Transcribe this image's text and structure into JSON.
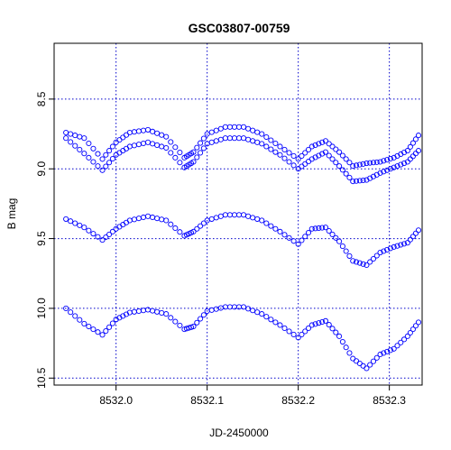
{
  "chart_data": {
    "type": "scatter",
    "title": "GSC03807-00759",
    "xlabel": "JD-2450000",
    "ylabel": "B mag",
    "xlim": [
      8531.932,
      8532.336
    ],
    "ylim": [
      10.55,
      8.1
    ],
    "y_inverted": true,
    "x_ticks": [
      8532.0,
      8532.1,
      8532.2,
      8532.3
    ],
    "x_tick_labels": [
      "8532.0",
      "8532.1",
      "8532.2",
      "8532.3"
    ],
    "y_ticks": [
      8.5,
      9.0,
      9.5,
      10.0,
      10.5
    ],
    "y_tick_labels": [
      "8.5",
      "9.0",
      "9.5",
      "10.0",
      "10.5"
    ],
    "grid": true,
    "marker": "open-circle",
    "color": "#0000ff",
    "grid_color": "#0000cc",
    "series": [
      {
        "x": [
          8531.945,
          8531.965,
          8531.985,
          8532.0,
          8532.015,
          8532.035,
          8532.055,
          8532.075,
          8532.085,
          8532.1,
          8532.12,
          8532.14,
          8532.16,
          8532.18,
          8532.2,
          8532.215,
          8532.23,
          8532.245,
          8532.26,
          8532.275,
          8532.29,
          8532.305,
          8532.32,
          8532.332
        ],
        "y": [
          8.74,
          8.78,
          8.93,
          8.81,
          8.74,
          8.72,
          8.77,
          8.92,
          8.88,
          8.75,
          8.7,
          8.7,
          8.75,
          8.84,
          8.93,
          8.84,
          8.8,
          8.88,
          8.98,
          8.96,
          8.95,
          8.92,
          8.87,
          8.76
        ]
      },
      {
        "x": [
          8531.945,
          8531.965,
          8531.985,
          8532.0,
          8532.015,
          8532.035,
          8532.055,
          8532.075,
          8532.085,
          8532.1,
          8532.12,
          8532.14,
          8532.16,
          8532.18,
          8532.2,
          8532.215,
          8532.23,
          8532.245,
          8532.26,
          8532.275,
          8532.29,
          8532.305,
          8532.32,
          8532.332
        ],
        "y": [
          8.78,
          8.89,
          9.01,
          8.9,
          8.84,
          8.81,
          8.85,
          8.99,
          8.95,
          8.82,
          8.78,
          8.78,
          8.82,
          8.9,
          9.0,
          8.93,
          8.88,
          8.98,
          9.09,
          9.08,
          9.03,
          8.99,
          8.95,
          8.87
        ]
      },
      {
        "x": [
          8531.945,
          8531.965,
          8531.985,
          8532.0,
          8532.015,
          8532.035,
          8532.055,
          8532.075,
          8532.085,
          8532.1,
          8532.12,
          8532.14,
          8532.16,
          8532.18,
          8532.2,
          8532.215,
          8532.23,
          8532.245,
          8532.26,
          8532.275,
          8532.29,
          8532.305,
          8532.32,
          8532.332
        ],
        "y": [
          9.36,
          9.42,
          9.51,
          9.43,
          9.37,
          9.34,
          9.37,
          9.48,
          9.45,
          9.37,
          9.33,
          9.33,
          9.37,
          9.45,
          9.54,
          9.43,
          9.42,
          9.52,
          9.66,
          9.69,
          9.6,
          9.56,
          9.53,
          9.44
        ]
      },
      {
        "x": [
          8531.945,
          8531.965,
          8531.985,
          8532.0,
          8532.015,
          8532.035,
          8532.055,
          8532.075,
          8532.085,
          8532.1,
          8532.12,
          8532.14,
          8532.16,
          8532.18,
          8532.2,
          8532.215,
          8532.23,
          8532.245,
          8532.26,
          8532.275,
          8532.29,
          8532.305,
          8532.32,
          8532.332
        ],
        "y": [
          10.0,
          10.11,
          10.19,
          10.08,
          10.03,
          10.01,
          10.04,
          10.15,
          10.13,
          10.02,
          9.99,
          9.99,
          10.04,
          10.12,
          10.21,
          10.12,
          10.09,
          10.2,
          10.36,
          10.43,
          10.33,
          10.29,
          10.2,
          10.1
        ]
      }
    ]
  }
}
